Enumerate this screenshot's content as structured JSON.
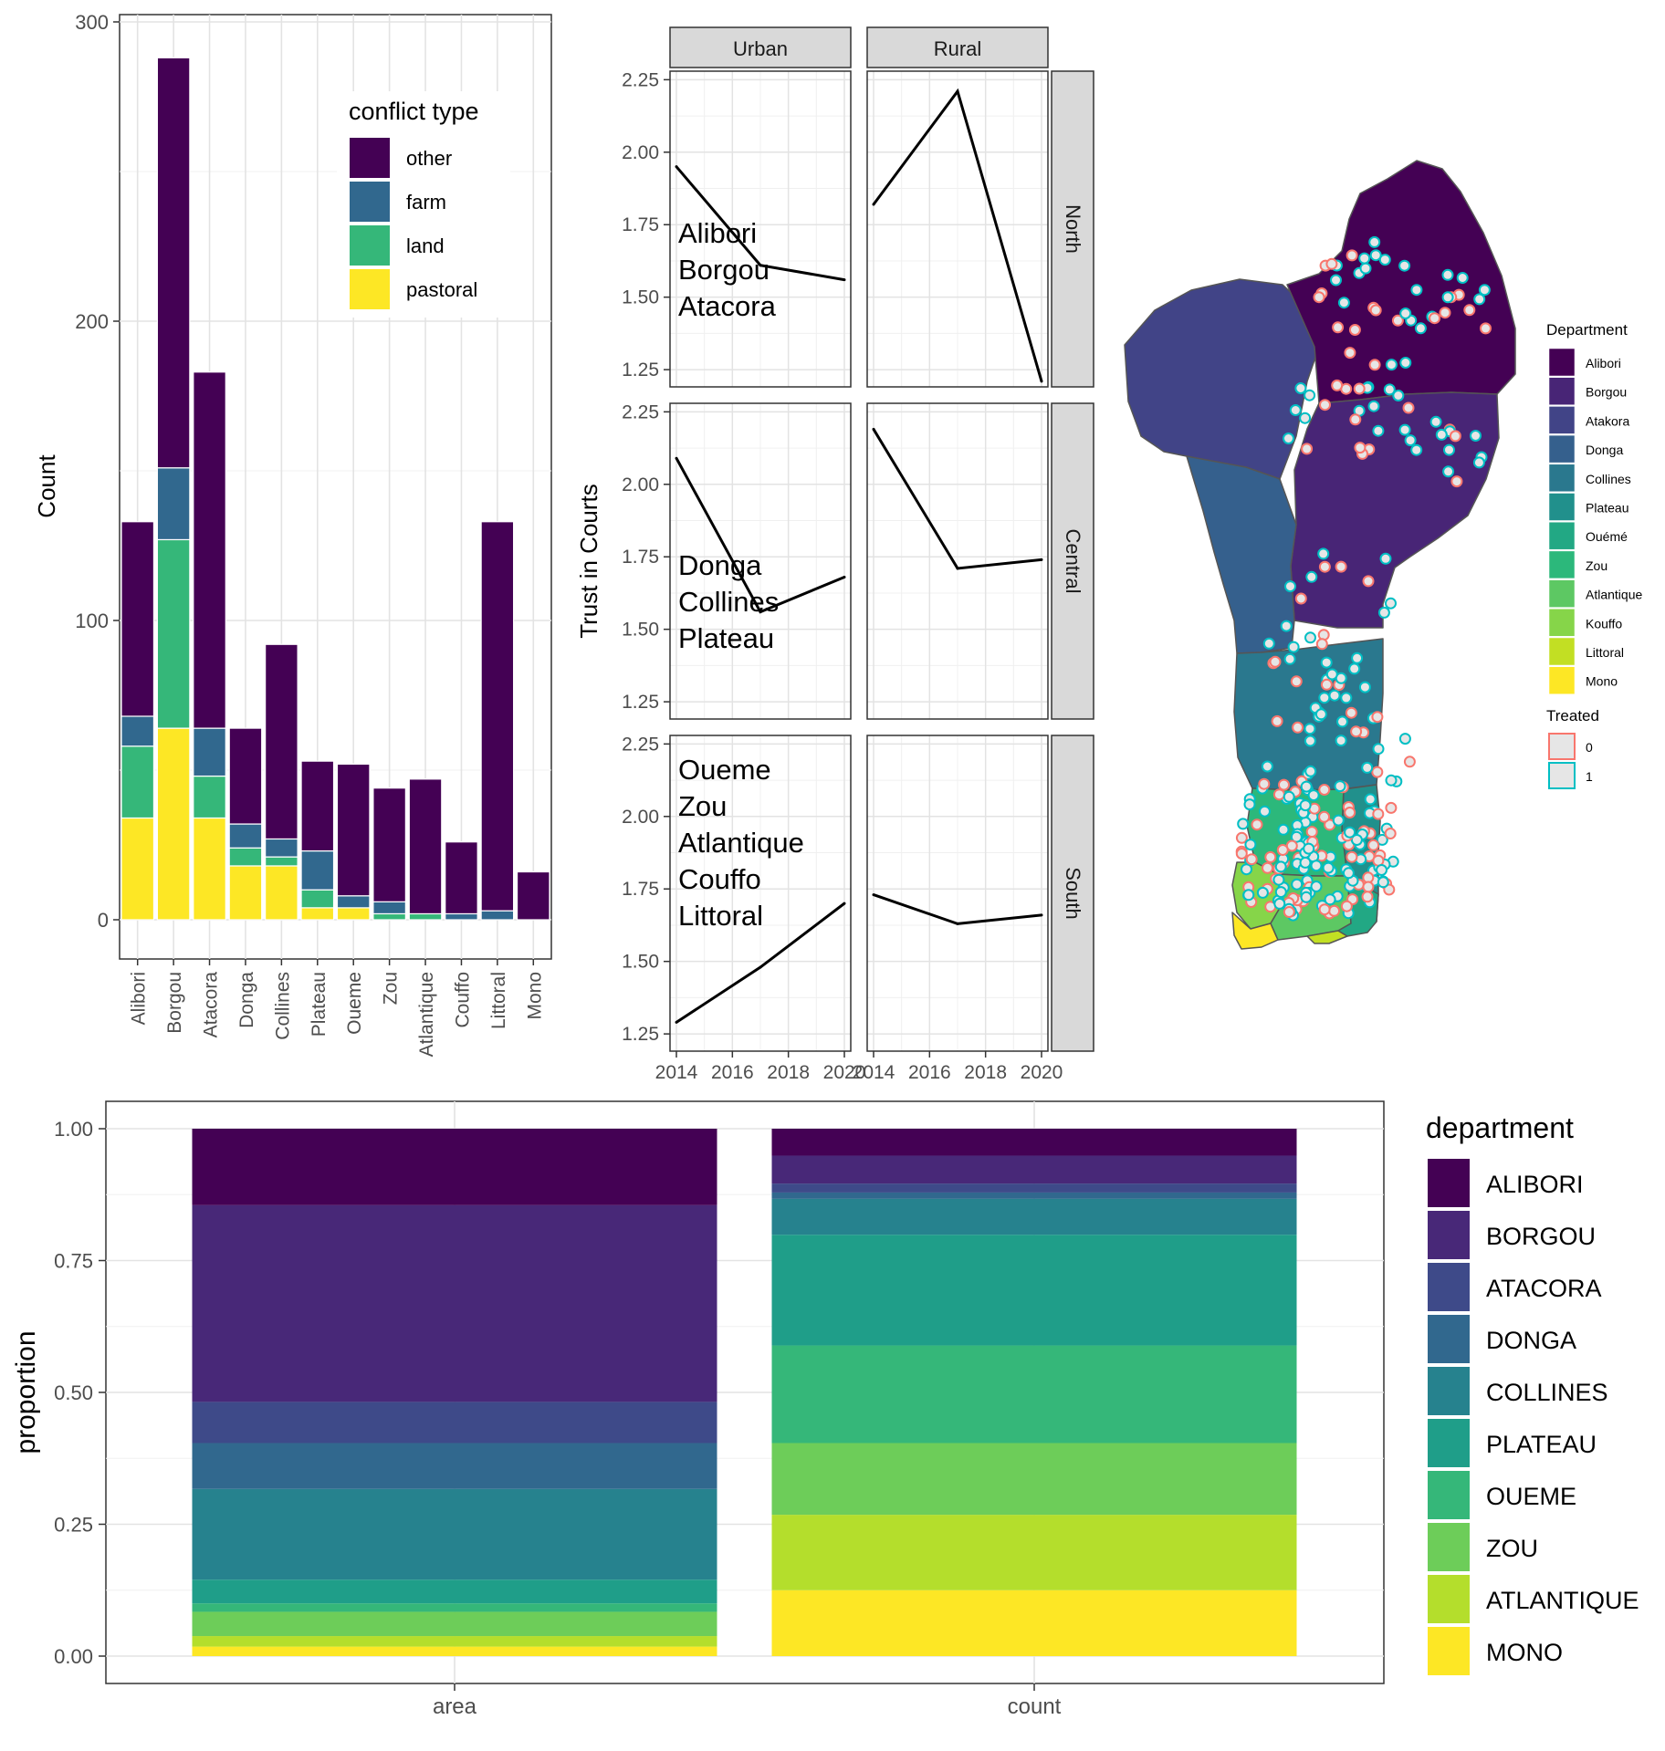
{
  "chart_data": [
    {
      "id": "conflict_bar",
      "type": "bar",
      "stacked": true,
      "ylabel": "Count",
      "ylim": [
        0,
        300
      ],
      "yticks": [
        0,
        100,
        200,
        300
      ],
      "categories": [
        "Alibori",
        "Borgou",
        "Atacora",
        "Donga",
        "Collines",
        "Plateau",
        "Oueme",
        "Zou",
        "Atlantique",
        "Couffo",
        "Littoral",
        "Mono"
      ],
      "legend_title": "conflict type",
      "legend_placement": "top-right inside",
      "series": [
        {
          "name": "pastoral",
          "color": "#FDE725",
          "values": [
            34,
            64,
            34,
            18,
            18,
            4,
            4,
            0,
            0,
            0,
            0,
            0
          ]
        },
        {
          "name": "land",
          "color": "#35B779",
          "values": [
            24,
            63,
            14,
            6,
            3,
            6,
            0,
            2,
            2,
            0,
            0,
            0
          ]
        },
        {
          "name": "farm",
          "color": "#31688E",
          "values": [
            10,
            24,
            16,
            8,
            6,
            13,
            4,
            4,
            0,
            2,
            3,
            0
          ]
        },
        {
          "name": "other",
          "color": "#440154",
          "values": [
            65,
            137,
            119,
            32,
            65,
            30,
            44,
            38,
            45,
            24,
            130,
            16
          ]
        }
      ],
      "grid": true
    },
    {
      "id": "trust_lines",
      "type": "line",
      "ylabel": "Trust in Courts",
      "xlim": [
        2014,
        2020
      ],
      "xticks": [
        "2014",
        "2016",
        "2018",
        "2020"
      ],
      "ylim": [
        1.2,
        2.27
      ],
      "yticks": [
        "1.25",
        "1.50",
        "1.75",
        "2.00",
        "2.25"
      ],
      "col_facets": [
        "Urban",
        "Rural"
      ],
      "row_facets": [
        "North",
        "Central",
        "South"
      ],
      "panels": [
        {
          "row": "North",
          "col": "Urban",
          "x": [
            2014,
            2017,
            2020
          ],
          "y": [
            1.95,
            1.61,
            1.56
          ],
          "annotation": [
            "Alibori",
            "Borgou",
            "Atacora"
          ]
        },
        {
          "row": "North",
          "col": "Rural",
          "x": [
            2014,
            2017,
            2020
          ],
          "y": [
            1.82,
            2.21,
            1.21
          ],
          "annotation": []
        },
        {
          "row": "Central",
          "col": "Urban",
          "x": [
            2014,
            2017,
            2020
          ],
          "y": [
            2.09,
            1.56,
            1.68
          ],
          "annotation": [
            "Donga",
            "Collines",
            "Plateau"
          ]
        },
        {
          "row": "Central",
          "col": "Rural",
          "x": [
            2014,
            2017,
            2020
          ],
          "y": [
            2.19,
            1.71,
            1.74
          ],
          "annotation": []
        },
        {
          "row": "South",
          "col": "Urban",
          "x": [
            2014,
            2017,
            2020
          ],
          "y": [
            1.29,
            1.48,
            1.7
          ],
          "annotation": [
            "Oueme",
            "Zou",
            "Atlantique",
            "Couffo",
            "Littoral"
          ]
        },
        {
          "row": "South",
          "col": "Rural",
          "x": [
            2014,
            2017,
            2020
          ],
          "y": [
            1.73,
            1.63,
            1.66
          ],
          "annotation": []
        }
      ],
      "grid": true
    },
    {
      "id": "benin_map",
      "type": "map",
      "legend_title": "Department",
      "departments": [
        {
          "name": "Alibori",
          "color": "#440154"
        },
        {
          "name": "Borgou",
          "color": "#482576"
        },
        {
          "name": "Atakora",
          "color": "#414487"
        },
        {
          "name": "Donga",
          "color": "#35608D"
        },
        {
          "name": "Collines",
          "color": "#2A788E"
        },
        {
          "name": "Plateau",
          "color": "#21908C"
        },
        {
          "name": "Ouémé",
          "color": "#22A884"
        },
        {
          "name": "Zou",
          "color": "#2CB87B"
        },
        {
          "name": "Atlantique",
          "color": "#5DC863"
        },
        {
          "name": "Kouffo",
          "color": "#86D549"
        },
        {
          "name": "Littoral",
          "color": "#C2DF23"
        },
        {
          "name": "Mono",
          "color": "#FDE725"
        }
      ],
      "treated_title": "Treated",
      "treated": [
        {
          "label": "0",
          "color": "#F8766D"
        },
        {
          "label": "1",
          "color": "#00BFC4"
        }
      ]
    },
    {
      "id": "proportion_bar",
      "type": "bar",
      "stacked": true,
      "ylabel": "proportion",
      "ylim": [
        0,
        1
      ],
      "yticks": [
        "0.00",
        "0.25",
        "0.50",
        "0.75",
        "1.00"
      ],
      "categories": [
        "area",
        "count"
      ],
      "legend_title": "department",
      "legend_placement": "right",
      "series": [
        {
          "name": "MONO",
          "color": "#FDE725",
          "values": [
            0.018,
            0.125
          ]
        },
        {
          "name": "ATLANTIQUE",
          "color": "#B4DE2C",
          "values": [
            0.02,
            0.143
          ]
        },
        {
          "name": "ZOU",
          "color": "#6DCD59",
          "values": [
            0.046,
            0.136
          ]
        },
        {
          "name": "OUEME",
          "color": "#35B779",
          "values": [
            0.016,
            0.185
          ]
        },
        {
          "name": "PLATEAU",
          "color": "#1F9E89",
          "values": [
            0.045,
            0.21
          ]
        },
        {
          "name": "COLLINES",
          "color": "#26828E",
          "values": [
            0.172,
            0.068
          ]
        },
        {
          "name": "DONGA",
          "color": "#31688E",
          "values": [
            0.087,
            0.012
          ]
        },
        {
          "name": "ATACORA",
          "color": "#3E4A89",
          "values": [
            0.078,
            0.017
          ]
        },
        {
          "name": "BORGOU",
          "color": "#482878",
          "values": [
            0.373,
            0.053
          ]
        },
        {
          "name": "ALIBORI",
          "color": "#440154",
          "values": [
            0.145,
            0.051
          ]
        }
      ],
      "grid": true
    }
  ]
}
